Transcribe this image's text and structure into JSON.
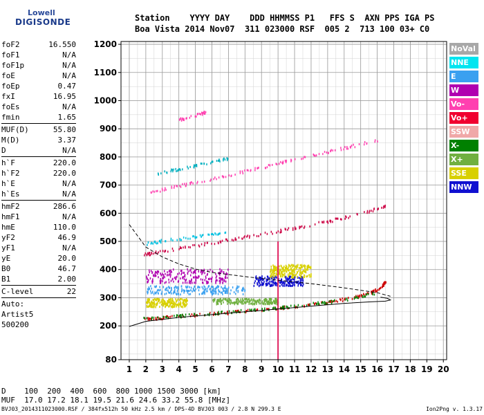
{
  "logo": {
    "line1": "Lowell",
    "line2": "DIGISONDE"
  },
  "header": {
    "line1": "Station    YYYY DAY    DDD HHMMSS P1   FFS S  AXN PPS IGA PS",
    "line2": "Boa Vista 2014 Nov07  311 023000 RSF  005 2  713 100 03+ C0"
  },
  "params": [
    {
      "k": "foF2",
      "v": "16.550"
    },
    {
      "k": "foF1",
      "v": "N/A"
    },
    {
      "k": "foF1p",
      "v": "N/A"
    },
    {
      "k": "foE",
      "v": "N/A"
    },
    {
      "k": "foEp",
      "v": "0.47"
    },
    {
      "k": "fxI",
      "v": "16.95"
    },
    {
      "k": "foEs",
      "v": "N/A"
    },
    {
      "k": "fmin",
      "v": "1.65"
    },
    {
      "sep": true
    },
    {
      "k": "MUF(D)",
      "v": "55.80"
    },
    {
      "k": "M(D)",
      "v": "3.37"
    },
    {
      "k": "D",
      "v": "N/A"
    },
    {
      "sep": true
    },
    {
      "k": "h`F",
      "v": "220.0"
    },
    {
      "k": "h`F2",
      "v": "220.0"
    },
    {
      "k": "h`E",
      "v": "N/A"
    },
    {
      "k": "h`Es",
      "v": "N/A"
    },
    {
      "sep": true
    },
    {
      "k": "hmF2",
      "v": "286.6"
    },
    {
      "k": "hmF1",
      "v": "N/A"
    },
    {
      "k": "hmE",
      "v": "110.0"
    },
    {
      "k": "yF2",
      "v": "46.9"
    },
    {
      "k": "yF1",
      "v": "N/A"
    },
    {
      "k": "yE",
      "v": "20.0"
    },
    {
      "k": "B0",
      "v": "46.7"
    },
    {
      "k": "B1",
      "v": "2.00"
    },
    {
      "sep": true
    },
    {
      "k": "C-level",
      "v": "22"
    },
    {
      "sep": true
    },
    {
      "free": "Auto:"
    },
    {
      "free": "Artist5"
    },
    {
      "free": "500200"
    }
  ],
  "legend": [
    {
      "label": "NoVal",
      "color": "#a8a8a8"
    },
    {
      "label": "NNE",
      "color": "#00e5f0"
    },
    {
      "label": "E",
      "color": "#3aa0f0"
    },
    {
      "label": "W",
      "color": "#b000b0"
    },
    {
      "label": "Vo-",
      "color": "#ff40b0"
    },
    {
      "label": "Vo+",
      "color": "#f00030"
    },
    {
      "label": "SSW",
      "color": "#f0a8a8"
    },
    {
      "label": "X-",
      "color": "#008000"
    },
    {
      "label": "X+",
      "color": "#70b040"
    },
    {
      "label": "SSE",
      "color": "#d8d000"
    },
    {
      "label": "NNW",
      "color": "#1010d0"
    }
  ],
  "bottom": {
    "line1": "D    100  200  400  600  800 1000 1500 3000 [km]",
    "line2": "MUF  17.0 17.2 18.1 19.5 21.6 24.6 33.2 55.8 [MHz]"
  },
  "footer": {
    "left": "BVJ03_2014311023000.RSF / 384fx512h 50 kHz 2.5 km / DPS-4D BVJ03 003 / 2.8 N 299.3 E",
    "right": "Ion2Png v. 1.3.17"
  },
  "chart_data": {
    "type": "scatter",
    "x_ticks": [
      1,
      2,
      3,
      4,
      5,
      6,
      7,
      8,
      9,
      10,
      11,
      12,
      13,
      14,
      15,
      16,
      17,
      18,
      19,
      20
    ],
    "y_ticks": [
      80,
      200,
      300,
      400,
      500,
      600,
      700,
      800,
      900,
      1000,
      1100,
      1200
    ],
    "xlim": [
      0.5,
      20.2
    ],
    "ylim": [
      80,
      1210
    ],
    "grid": true,
    "vertical_marker_x": 10,
    "traces": [
      {
        "name": "O-trace F2",
        "color": "#cc0000",
        "points": [
          [
            1.7,
            225
          ],
          [
            3,
            232
          ],
          [
            5,
            242
          ],
          [
            7,
            250
          ],
          [
            9,
            260
          ],
          [
            11,
            272
          ],
          [
            13,
            288
          ],
          [
            14.5,
            302
          ],
          [
            15.5,
            318
          ],
          [
            16.2,
            340
          ],
          [
            16.5,
            360
          ]
        ]
      },
      {
        "name": "X-trace F2",
        "color": "#008000",
        "points": [
          [
            1.8,
            228
          ],
          [
            4,
            238
          ],
          [
            6,
            247
          ],
          [
            8,
            256
          ],
          [
            10,
            266
          ],
          [
            12,
            280
          ],
          [
            14,
            295
          ],
          [
            15.8,
            318
          ]
        ]
      },
      {
        "name": "second hop",
        "color": "#cc0044",
        "points": [
          [
            1.8,
            455
          ],
          [
            3,
            468
          ],
          [
            5,
            488
          ],
          [
            7,
            508
          ],
          [
            9,
            528
          ],
          [
            11,
            550
          ],
          [
            13,
            574
          ],
          [
            15,
            600
          ],
          [
            16.5,
            630
          ]
        ]
      },
      {
        "name": "second hop cyan",
        "color": "#00c0e0",
        "points": [
          [
            2,
            495
          ],
          [
            3,
            505
          ],
          [
            5,
            520
          ],
          [
            7,
            535
          ]
        ]
      },
      {
        "name": "third hop",
        "color": "#ff40b0",
        "points": [
          [
            2.2,
            675
          ],
          [
            4,
            700
          ],
          [
            6,
            725
          ],
          [
            8,
            752
          ],
          [
            10,
            780
          ],
          [
            12,
            808
          ],
          [
            14,
            835
          ],
          [
            16,
            862
          ]
        ]
      },
      {
        "name": "third hop upper",
        "color": "#00b0c0",
        "points": [
          [
            2.7,
            745
          ],
          [
            4,
            760
          ],
          [
            5.5,
            778
          ],
          [
            7,
            798
          ]
        ]
      },
      {
        "name": "fourth hop",
        "color": "#ff40b0",
        "points": [
          [
            4,
            935
          ],
          [
            5,
            950
          ],
          [
            5.6,
            962
          ]
        ]
      }
    ],
    "clusters": [
      {
        "name": "E band",
        "color": "#3aa0f0",
        "x": [
          2,
          8
        ],
        "y": [
          315,
          345
        ]
      },
      {
        "name": "W band",
        "color": "#b000b0",
        "x": [
          2,
          7
        ],
        "y": [
          355,
          405
        ]
      },
      {
        "name": "SSE band",
        "color": "#d8d000",
        "x": [
          2,
          4.5
        ],
        "y": [
          270,
          300
        ]
      },
      {
        "name": "NNW band",
        "color": "#1010d0",
        "x": [
          8.5,
          11.5
        ],
        "y": [
          345,
          380
        ]
      },
      {
        "name": "SSE spread",
        "color": "#d8d000",
        "x": [
          9.5,
          12
        ],
        "y": [
          375,
          420
        ]
      },
      {
        "name": "X+ spread",
        "color": "#70b040",
        "x": [
          6,
          10
        ],
        "y": [
          280,
          300
        ]
      }
    ],
    "profile_solid": [
      [
        1,
        198
      ],
      [
        2,
        216
      ],
      [
        4,
        230
      ],
      [
        6,
        240
      ],
      [
        8,
        250
      ],
      [
        10,
        260
      ],
      [
        12,
        270
      ],
      [
        14,
        280
      ],
      [
        15.5,
        285
      ],
      [
        16.5,
        288
      ],
      [
        16.8,
        292
      ],
      [
        16.6,
        298
      ],
      [
        16.2,
        302
      ]
    ],
    "profile_dashed": [
      [
        1,
        560
      ],
      [
        1.5,
        520
      ],
      [
        2,
        480
      ],
      [
        3,
        445
      ],
      [
        4,
        420
      ],
      [
        5,
        402
      ],
      [
        6,
        390
      ],
      [
        8,
        375
      ],
      [
        10,
        362
      ],
      [
        12,
        350
      ],
      [
        14,
        335
      ],
      [
        16,
        318
      ],
      [
        16.8,
        305
      ]
    ]
  }
}
